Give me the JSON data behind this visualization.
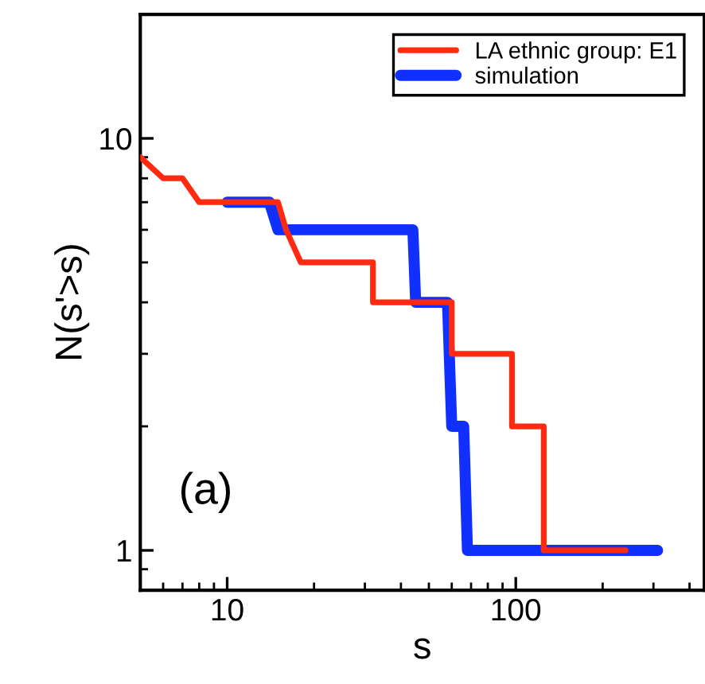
{
  "chart_data": {
    "type": "line",
    "xlabel": "s",
    "ylabel": "N(s'>s)",
    "log": "xy",
    "xlim": [
      5,
      450
    ],
    "ylim": [
      0.8,
      20
    ],
    "xticks": [
      10,
      100
    ],
    "yticks": [
      1,
      10
    ],
    "legend": "top right",
    "grid": false,
    "line_style": "solid",
    "marker": "none",
    "annotations": [
      "(a)"
    ],
    "series": [
      {
        "name": "LA ethnic group: E1",
        "color": "#ff2a10",
        "x": [
          5,
          6,
          7,
          8,
          15,
          16,
          18,
          32,
          32,
          60,
          60,
          97,
          97,
          125,
          125,
          240
        ],
        "values": [
          9,
          8,
          8,
          7,
          7,
          6,
          5,
          5,
          4,
          4,
          3,
          3,
          2,
          2,
          1,
          1
        ]
      },
      {
        "name": "simulation",
        "color": "#1030ff",
        "x": [
          10,
          14,
          15,
          44,
          45,
          58,
          60,
          66,
          68,
          310
        ],
        "values": [
          7,
          7,
          6,
          6,
          4,
          4,
          2,
          2,
          1,
          1
        ]
      }
    ]
  }
}
